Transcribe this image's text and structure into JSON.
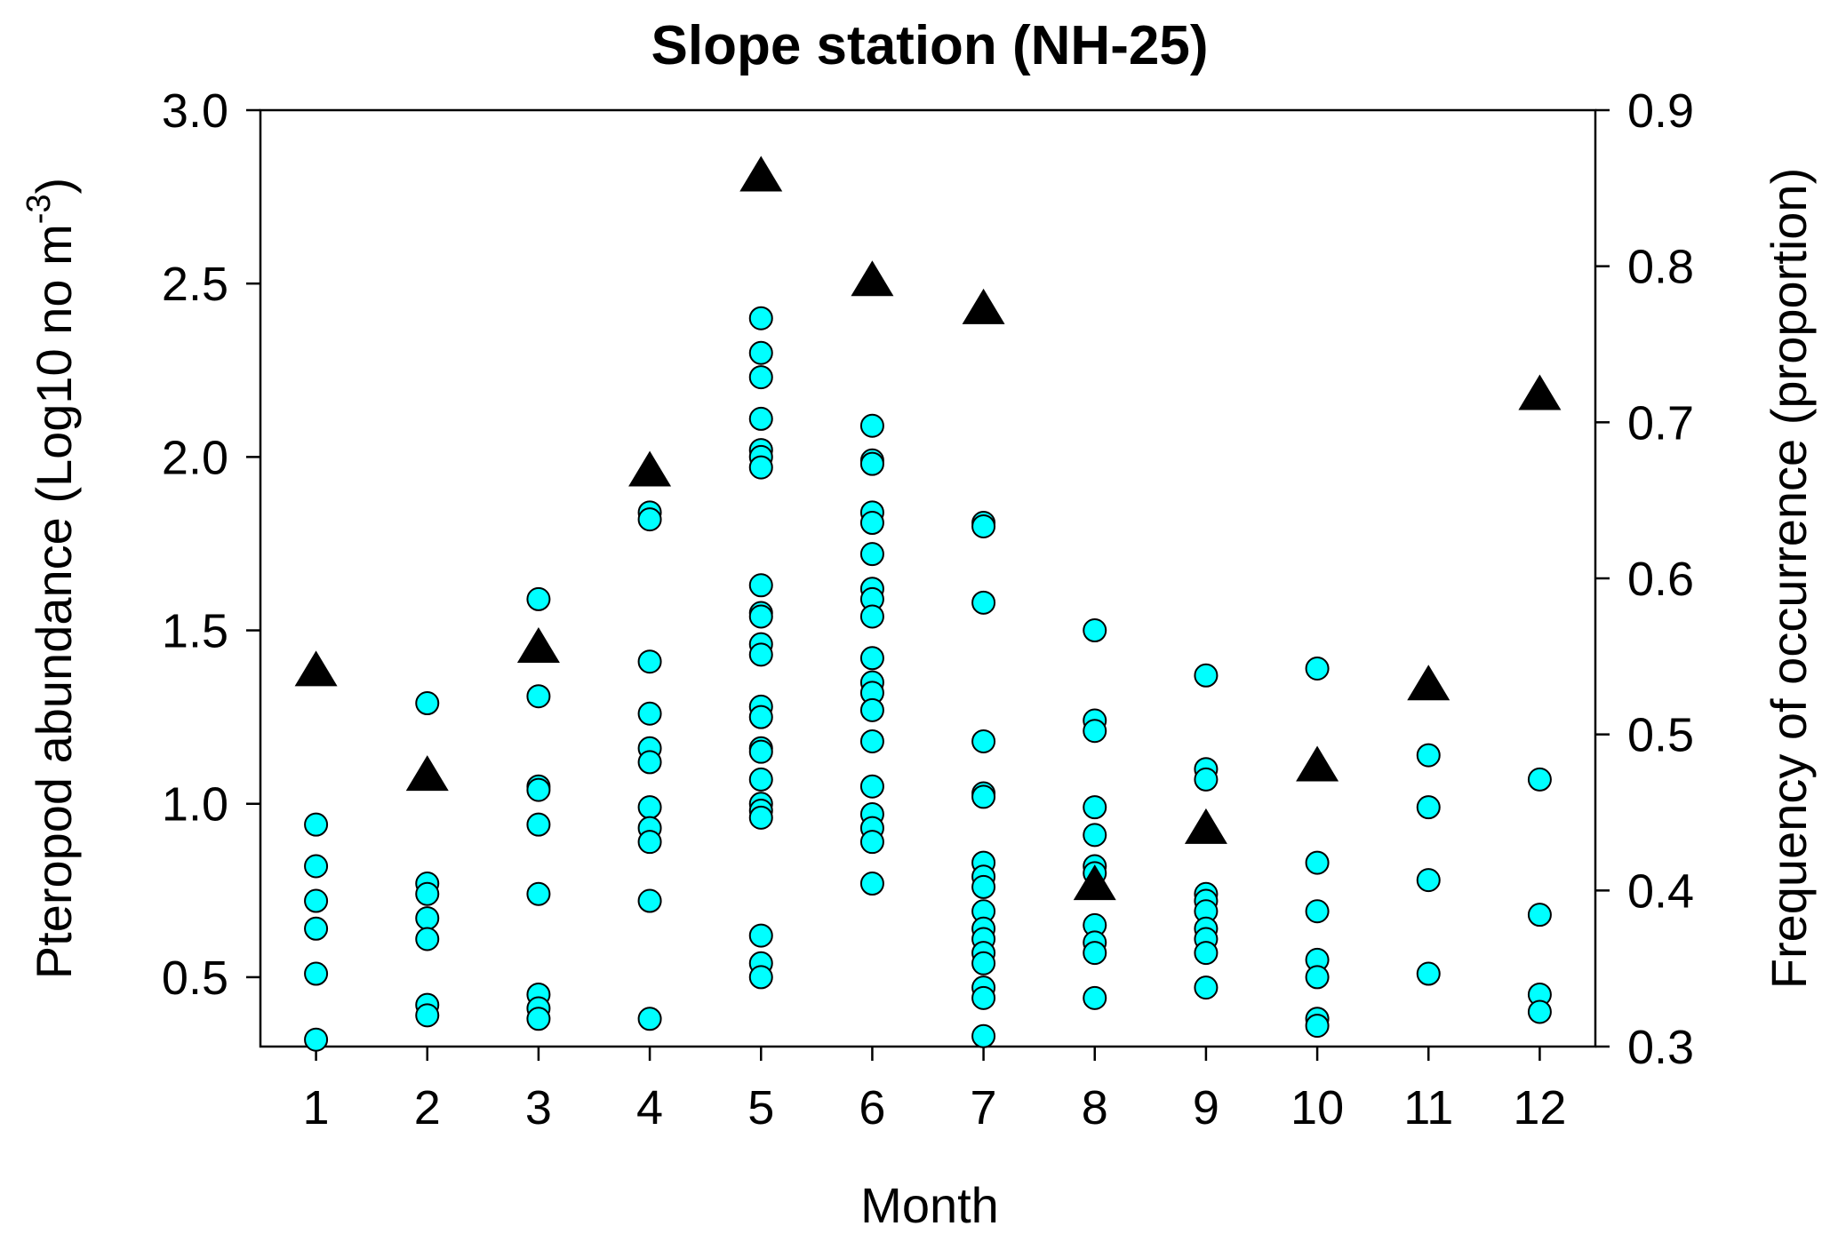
{
  "chart_data": {
    "type": "scatter",
    "title": "Slope station (NH-25)",
    "xlabel": "Month",
    "ylabel": "Pteropod abundance (Log10 no m",
    "ylabel_sup": "-3",
    "ylabel_close": ")",
    "y2label": "Frequency of occurrence (proportion)",
    "xlim": [
      0.5,
      12.5
    ],
    "ylim": [
      0.3,
      3.0
    ],
    "y2lim": [
      0.3,
      0.9
    ],
    "x_ticks": [
      1,
      2,
      3,
      4,
      5,
      6,
      7,
      8,
      9,
      10,
      11,
      12
    ],
    "x_tick_labels": [
      "1",
      "2",
      "3",
      "4",
      "5",
      "6",
      "7",
      "8",
      "9",
      "10",
      "11",
      "12"
    ],
    "y_ticks": [
      0.5,
      1.0,
      1.5,
      2.0,
      2.5,
      3.0
    ],
    "y_tick_labels": [
      "0.5",
      "1.0",
      "1.5",
      "2.0",
      "2.5",
      "3.0"
    ],
    "y2_ticks": [
      0.3,
      0.4,
      0.5,
      0.6,
      0.7,
      0.8,
      0.9
    ],
    "y2_tick_labels": [
      "0.3",
      "0.4",
      "0.5",
      "0.6",
      "0.7",
      "0.8",
      "0.9"
    ],
    "grid": false,
    "series": [
      {
        "axis": "left",
        "marker": "circle",
        "color": "#00ffff",
        "points": [
          [
            1,
            0.94
          ],
          [
            1,
            0.82
          ],
          [
            1,
            0.72
          ],
          [
            1,
            0.64
          ],
          [
            1,
            0.51
          ],
          [
            1,
            0.32
          ],
          [
            2,
            1.29
          ],
          [
            2,
            0.77
          ],
          [
            2,
            0.74
          ],
          [
            2,
            0.67
          ],
          [
            2,
            0.61
          ],
          [
            2,
            0.42
          ],
          [
            2,
            0.39
          ],
          [
            3,
            1.59
          ],
          [
            3,
            1.31
          ],
          [
            3,
            1.05
          ],
          [
            3,
            1.04
          ],
          [
            3,
            0.94
          ],
          [
            3,
            0.74
          ],
          [
            3,
            0.45
          ],
          [
            3,
            0.41
          ],
          [
            3,
            0.38
          ],
          [
            4,
            1.84
          ],
          [
            4,
            1.82
          ],
          [
            4,
            1.41
          ],
          [
            4,
            1.26
          ],
          [
            4,
            1.16
          ],
          [
            4,
            1.12
          ],
          [
            4,
            0.99
          ],
          [
            4,
            0.93
          ],
          [
            4,
            0.89
          ],
          [
            4,
            0.72
          ],
          [
            4,
            0.38
          ],
          [
            5,
            2.4
          ],
          [
            5,
            2.3
          ],
          [
            5,
            2.23
          ],
          [
            5,
            2.11
          ],
          [
            5,
            2.02
          ],
          [
            5,
            2.0
          ],
          [
            5,
            1.97
          ],
          [
            5,
            1.63
          ],
          [
            5,
            1.55
          ],
          [
            5,
            1.54
          ],
          [
            5,
            1.46
          ],
          [
            5,
            1.43
          ],
          [
            5,
            1.28
          ],
          [
            5,
            1.25
          ],
          [
            5,
            1.16
          ],
          [
            5,
            1.15
          ],
          [
            5,
            1.07
          ],
          [
            5,
            1.0
          ],
          [
            5,
            0.98
          ],
          [
            5,
            0.96
          ],
          [
            5,
            0.62
          ],
          [
            5,
            0.54
          ],
          [
            5,
            0.5
          ],
          [
            6,
            2.09
          ],
          [
            6,
            1.99
          ],
          [
            6,
            1.98
          ],
          [
            6,
            1.84
          ],
          [
            6,
            1.81
          ],
          [
            6,
            1.72
          ],
          [
            6,
            1.62
          ],
          [
            6,
            1.59
          ],
          [
            6,
            1.54
          ],
          [
            6,
            1.42
          ],
          [
            6,
            1.35
          ],
          [
            6,
            1.32
          ],
          [
            6,
            1.27
          ],
          [
            6,
            1.18
          ],
          [
            6,
            1.05
          ],
          [
            6,
            0.97
          ],
          [
            6,
            0.93
          ],
          [
            6,
            0.89
          ],
          [
            6,
            0.77
          ],
          [
            7,
            1.81
          ],
          [
            7,
            1.8
          ],
          [
            7,
            1.58
          ],
          [
            7,
            1.18
          ],
          [
            7,
            1.03
          ],
          [
            7,
            1.02
          ],
          [
            7,
            0.83
          ],
          [
            7,
            0.79
          ],
          [
            7,
            0.76
          ],
          [
            7,
            0.69
          ],
          [
            7,
            0.64
          ],
          [
            7,
            0.61
          ],
          [
            7,
            0.57
          ],
          [
            7,
            0.54
          ],
          [
            7,
            0.47
          ],
          [
            7,
            0.44
          ],
          [
            7,
            0.33
          ],
          [
            8,
            1.5
          ],
          [
            8,
            1.24
          ],
          [
            8,
            1.21
          ],
          [
            8,
            0.99
          ],
          [
            8,
            0.91
          ],
          [
            8,
            0.82
          ],
          [
            8,
            0.8
          ],
          [
            8,
            0.65
          ],
          [
            8,
            0.6
          ],
          [
            8,
            0.57
          ],
          [
            8,
            0.44
          ],
          [
            9,
            1.37
          ],
          [
            9,
            1.1
          ],
          [
            9,
            1.07
          ],
          [
            9,
            0.74
          ],
          [
            9,
            0.72
          ],
          [
            9,
            0.69
          ],
          [
            9,
            0.64
          ],
          [
            9,
            0.61
          ],
          [
            9,
            0.57
          ],
          [
            9,
            0.47
          ],
          [
            10,
            1.39
          ],
          [
            10,
            0.83
          ],
          [
            10,
            0.69
          ],
          [
            10,
            0.55
          ],
          [
            10,
            0.5
          ],
          [
            10,
            0.38
          ],
          [
            10,
            0.36
          ],
          [
            11,
            1.14
          ],
          [
            11,
            0.99
          ],
          [
            11,
            0.78
          ],
          [
            11,
            0.51
          ],
          [
            12,
            1.07
          ],
          [
            12,
            0.68
          ],
          [
            12,
            0.45
          ],
          [
            12,
            0.4
          ]
        ]
      },
      {
        "axis": "right",
        "marker": "triangle",
        "color": "#000000",
        "points": [
          [
            1,
            0.54
          ],
          [
            2,
            0.473
          ],
          [
            3,
            0.555
          ],
          [
            4,
            0.668
          ],
          [
            5,
            0.857
          ],
          [
            6,
            0.79
          ],
          [
            7,
            0.772
          ],
          [
            8,
            0.403
          ],
          [
            9,
            0.439
          ],
          [
            10,
            0.479
          ],
          [
            11,
            0.531
          ],
          [
            12,
            0.717
          ]
        ]
      }
    ]
  }
}
